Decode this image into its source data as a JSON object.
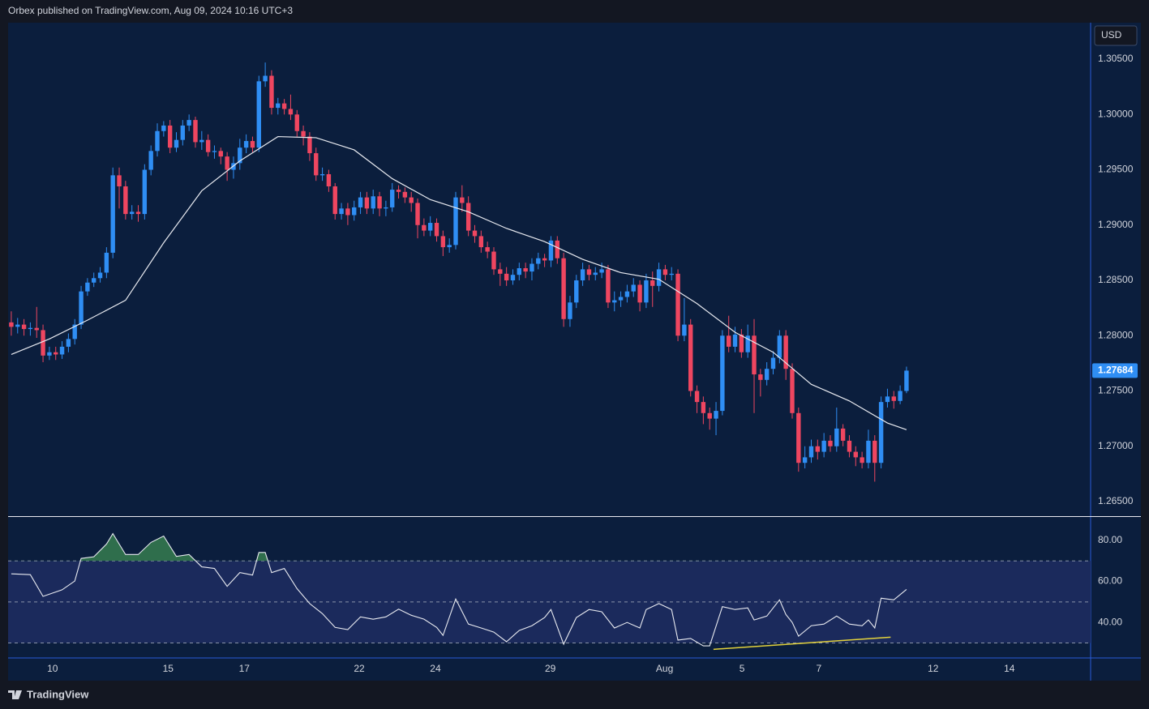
{
  "header": {
    "attribution": "Orbex published on TradingView.com, Aug 09, 2024 10:16 UTC+3"
  },
  "footer": {
    "logo_text": "TradingView"
  },
  "chart_data": [
    {
      "type": "candlestick",
      "currency": "USD",
      "up_color": "#2f8ef4",
      "down_color": "#ef4660",
      "x": [
        0,
        1,
        2,
        3,
        4,
        5,
        6,
        7,
        8,
        9,
        10,
        11,
        12,
        13,
        14,
        15,
        16,
        17,
        18,
        19,
        20,
        21,
        22,
        23,
        24,
        25,
        26,
        27,
        28,
        29,
        30,
        31,
        32,
        33,
        34,
        35,
        36,
        37,
        38,
        39,
        40,
        41,
        42,
        43,
        44,
        45,
        46,
        47,
        48,
        49,
        50,
        51,
        52,
        53,
        54,
        55,
        56,
        57,
        58,
        59,
        60,
        61,
        62,
        63,
        64,
        65,
        66,
        67,
        68,
        69,
        70,
        71,
        72,
        73,
        74,
        75,
        76,
        77,
        78,
        79,
        80,
        81,
        82,
        83,
        84,
        85,
        86,
        87,
        88,
        89,
        90,
        91,
        92,
        93,
        94,
        95,
        96,
        97,
        98,
        99,
        100,
        101,
        102,
        103,
        104,
        105,
        106,
        107,
        108,
        109,
        110,
        111,
        112,
        113,
        114,
        115,
        116,
        117,
        118,
        119,
        120,
        121,
        122,
        123,
        124,
        125,
        126,
        127,
        128,
        129,
        130,
        131,
        132,
        133,
        134,
        135,
        136,
        137,
        138,
        139,
        140,
        141
      ],
      "open": [
        1.2812,
        1.2808,
        1.281,
        1.2806,
        1.2807,
        1.2805,
        1.2782,
        1.2785,
        1.2783,
        1.279,
        1.2797,
        1.281,
        1.284,
        1.2848,
        1.2852,
        1.2857,
        1.2875,
        1.2945,
        1.2935,
        1.291,
        1.2912,
        1.291,
        1.295,
        1.2967,
        1.2985,
        1.299,
        1.297,
        1.2977,
        1.299,
        1.2995,
        1.2975,
        1.2977,
        1.2966,
        1.2967,
        1.2962,
        1.295,
        1.2956,
        1.297,
        1.2976,
        1.297,
        1.303,
        1.3035,
        1.3006,
        1.301,
        1.3005,
        1.3,
        1.2985,
        1.298,
        1.2965,
        1.2945,
        1.2946,
        1.2935,
        1.291,
        1.2915,
        1.2909,
        1.2916,
        1.2925,
        1.2915,
        1.2926,
        1.2915,
        1.2916,
        1.2932,
        1.293,
        1.2925,
        1.292,
        1.29,
        1.2895,
        1.2902,
        1.289,
        1.288,
        1.2882,
        1.2925,
        1.292,
        1.2895,
        1.289,
        1.288,
        1.2876,
        1.286,
        1.2856,
        1.285,
        1.2855,
        1.2861,
        1.2858,
        1.2865,
        1.287,
        1.2868,
        1.2886,
        1.287,
        1.2815,
        1.283,
        1.285,
        1.286,
        1.2855,
        1.2857,
        1.286,
        1.283,
        1.2832,
        1.2835,
        1.284,
        1.2846,
        1.283,
        1.285,
        1.2845,
        1.286,
        1.2855,
        1.2856,
        1.28,
        1.281,
        1.275,
        1.274,
        1.273,
        1.2725,
        1.2732,
        1.28,
        1.279,
        1.2801,
        1.2785,
        1.28,
        1.2765,
        1.276,
        1.277,
        1.278,
        1.28,
        1.277,
        1.273,
        1.2685,
        1.269,
        1.27,
        1.2695,
        1.2705,
        1.27,
        1.2716,
        1.2705,
        1.2695,
        1.269,
        1.2685,
        1.2705,
        1.2685,
        1.274,
        1.2745,
        1.2741,
        1.275
      ],
      "high": [
        1.2822,
        1.2816,
        1.2815,
        1.2812,
        1.2826,
        1.281,
        1.279,
        1.279,
        1.2795,
        1.2802,
        1.2815,
        1.2845,
        1.2852,
        1.2857,
        1.2862,
        1.288,
        1.2952,
        1.2952,
        1.294,
        1.2918,
        1.2918,
        1.2955,
        1.2972,
        1.2992,
        1.2994,
        1.2995,
        1.2984,
        1.2995,
        1.3,
        1.2998,
        1.2985,
        1.2982,
        1.2972,
        1.297,
        1.2966,
        1.2962,
        1.2978,
        1.2982,
        1.298,
        1.3035,
        1.3047,
        1.304,
        1.3015,
        1.3014,
        1.3018,
        1.3004,
        1.299,
        1.2984,
        1.297,
        1.2952,
        1.295,
        1.2938,
        1.292,
        1.292,
        1.2922,
        1.293,
        1.293,
        1.2932,
        1.293,
        1.2922,
        1.2938,
        1.2936,
        1.2934,
        1.293,
        1.2924,
        1.2906,
        1.2908,
        1.2906,
        1.2895,
        1.2888,
        1.293,
        1.2936,
        1.2926,
        1.29,
        1.2895,
        1.2885,
        1.288,
        1.2866,
        1.2862,
        1.286,
        1.2866,
        1.2866,
        1.287,
        1.2875,
        1.2874,
        1.289,
        1.289,
        1.2875,
        1.2836,
        1.2855,
        1.2866,
        1.2864,
        1.2862,
        1.2866,
        1.2864,
        1.284,
        1.284,
        1.2846,
        1.2852,
        1.285,
        1.2856,
        1.2858,
        1.2866,
        1.2864,
        1.2862,
        1.286,
        1.2834,
        1.2815,
        1.2755,
        1.2745,
        1.2735,
        1.274,
        1.2805,
        1.2818,
        1.2808,
        1.2806,
        1.281,
        1.2815,
        1.277,
        1.2776,
        1.2786,
        1.2805,
        1.2805,
        1.2775,
        1.2735,
        1.27,
        1.2706,
        1.2706,
        1.2712,
        1.271,
        1.2735,
        1.272,
        1.271,
        1.27,
        1.2695,
        1.2715,
        1.271,
        1.2745,
        1.2752,
        1.275,
        1.2755,
        1.2772
      ],
      "low": [
        1.28,
        1.2802,
        1.28,
        1.28,
        1.2798,
        1.2776,
        1.2778,
        1.2778,
        1.2779,
        1.2785,
        1.2792,
        1.2806,
        1.2836,
        1.2844,
        1.2848,
        1.2852,
        1.287,
        1.2915,
        1.2905,
        1.2905,
        1.2903,
        1.2905,
        1.2945,
        1.2962,
        1.298,
        1.2965,
        1.2966,
        1.2972,
        1.2985,
        1.297,
        1.2968,
        1.2962,
        1.296,
        1.2955,
        1.294,
        1.2942,
        1.295,
        1.2965,
        1.2966,
        1.2966,
        1.3025,
        1.3,
        1.3,
        1.3,
        1.2995,
        1.298,
        1.2972,
        1.2958,
        1.294,
        1.294,
        1.293,
        1.2905,
        1.2905,
        1.29,
        1.2904,
        1.291,
        1.291,
        1.291,
        1.2908,
        1.2908,
        1.2912,
        1.2924,
        1.292,
        1.2912,
        1.2888,
        1.289,
        1.289,
        1.2885,
        1.2872,
        1.2875,
        1.2878,
        1.2912,
        1.289,
        1.2884,
        1.2875,
        1.287,
        1.2855,
        1.2845,
        1.2845,
        1.2846,
        1.285,
        1.2852,
        1.285,
        1.286,
        1.2862,
        1.2862,
        1.2865,
        1.2808,
        1.2808,
        1.2825,
        1.2845,
        1.285,
        1.285,
        1.2852,
        1.2825,
        1.2822,
        1.2826,
        1.283,
        1.2835,
        1.2822,
        1.2825,
        1.2826,
        1.284,
        1.285,
        1.285,
        1.2795,
        1.2795,
        1.2745,
        1.273,
        1.272,
        1.2715,
        1.271,
        1.2728,
        1.2785,
        1.2785,
        1.278,
        1.278,
        1.273,
        1.2745,
        1.2755,
        1.2765,
        1.2775,
        1.276,
        1.2725,
        1.2677,
        1.268,
        1.2685,
        1.2688,
        1.269,
        1.2695,
        1.2695,
        1.27,
        1.269,
        1.2682,
        1.268,
        1.268,
        1.2668,
        1.268,
        1.2735,
        1.2734,
        1.2738,
        1.2748
      ],
      "close": [
        1.2808,
        1.281,
        1.2806,
        1.2807,
        1.2805,
        1.2782,
        1.2785,
        1.2783,
        1.279,
        1.2797,
        1.281,
        1.284,
        1.2848,
        1.2852,
        1.2857,
        1.2875,
        1.2945,
        1.2935,
        1.291,
        1.2912,
        1.291,
        1.295,
        1.2967,
        1.2985,
        1.299,
        1.297,
        1.2977,
        1.299,
        1.2995,
        1.2975,
        1.2977,
        1.2966,
        1.2967,
        1.2962,
        1.295,
        1.2956,
        1.297,
        1.2976,
        1.297,
        1.303,
        1.3035,
        1.3006,
        1.301,
        1.3005,
        1.3,
        1.2985,
        1.298,
        1.2965,
        1.2945,
        1.2946,
        1.2935,
        1.291,
        1.2915,
        1.2909,
        1.2916,
        1.2925,
        1.2915,
        1.2926,
        1.2915,
        1.2916,
        1.2932,
        1.293,
        1.2925,
        1.292,
        1.29,
        1.2895,
        1.2902,
        1.289,
        1.288,
        1.2882,
        1.2925,
        1.292,
        1.2895,
        1.289,
        1.288,
        1.2876,
        1.286,
        1.2856,
        1.285,
        1.2855,
        1.2861,
        1.2858,
        1.2865,
        1.287,
        1.2868,
        1.2886,
        1.287,
        1.2815,
        1.283,
        1.285,
        1.286,
        1.2855,
        1.2857,
        1.286,
        1.283,
        1.2832,
        1.2835,
        1.284,
        1.2846,
        1.283,
        1.285,
        1.2845,
        1.286,
        1.2855,
        1.2856,
        1.28,
        1.281,
        1.275,
        1.274,
        1.273,
        1.2725,
        1.2732,
        1.28,
        1.279,
        1.2801,
        1.2785,
        1.28,
        1.2765,
        1.276,
        1.277,
        1.278,
        1.28,
        1.277,
        1.273,
        1.2685,
        1.269,
        1.27,
        1.2695,
        1.2705,
        1.27,
        1.2716,
        1.2705,
        1.2695,
        1.269,
        1.2685,
        1.2705,
        1.2685,
        1.274,
        1.2745,
        1.2741,
        1.275,
        1.27684
      ],
      "overlay": {
        "type": "line",
        "color": "#e8eaf0",
        "x": [
          0,
          6,
          12,
          18,
          24,
          30,
          36,
          42,
          48,
          54,
          60,
          66,
          72,
          78,
          84,
          90,
          96,
          102,
          108,
          114,
          120,
          126,
          132,
          138,
          141
        ],
        "values": [
          1.2783,
          1.2797,
          1.2814,
          1.2832,
          1.2884,
          1.2931,
          1.2958,
          1.298,
          1.2979,
          1.2968,
          1.2942,
          1.2923,
          1.2912,
          1.2897,
          1.2885,
          1.2869,
          1.2857,
          1.2851,
          1.2829,
          1.2803,
          1.2785,
          1.2756,
          1.2741,
          1.2721,
          1.2715
        ]
      },
      "ylim": [
        1.26368,
        1.3083
      ],
      "yticks": [
        {
          "value": 1.265,
          "label": "1.26500"
        },
        {
          "value": 1.27,
          "label": "1.27000"
        },
        {
          "value": 1.275,
          "label": "1.27500"
        },
        {
          "value": 1.28,
          "label": "1.28000"
        },
        {
          "value": 1.285,
          "label": "1.28500"
        },
        {
          "value": 1.29,
          "label": "1.29000"
        },
        {
          "value": 1.295,
          "label": "1.29500"
        },
        {
          "value": 1.3,
          "label": "1.30000"
        },
        {
          "value": 1.305,
          "label": "1.30500"
        }
      ],
      "xlim": [
        -0.5,
        170
      ],
      "xticks": [
        {
          "value": 6.5,
          "label": "10"
        },
        {
          "value": 24.7,
          "label": "15"
        },
        {
          "value": 36.7,
          "label": "17"
        },
        {
          "value": 54.8,
          "label": "22"
        },
        {
          "value": 66.8,
          "label": "24"
        },
        {
          "value": 84.9,
          "label": "29"
        },
        {
          "value": 102.9,
          "label": "Aug"
        },
        {
          "value": 115.1,
          "label": "5"
        },
        {
          "value": 127.2,
          "label": "7"
        },
        {
          "value": 145.2,
          "label": "12"
        },
        {
          "value": 157.2,
          "label": "14"
        }
      ]
    },
    {
      "type": "line",
      "color": "#e8eaf0",
      "x": [
        0,
        3,
        5,
        8,
        10,
        11,
        13,
        15,
        16,
        18,
        20,
        22,
        24,
        26,
        28,
        30,
        32,
        34,
        36,
        38,
        39,
        40,
        41,
        43,
        45,
        47,
        49,
        51,
        53,
        55,
        57,
        59,
        61,
        63,
        65,
        67,
        68,
        70,
        72,
        74,
        76,
        78,
        80,
        82,
        84,
        85,
        87,
        89,
        91,
        93,
        95,
        97,
        99,
        100,
        102,
        104,
        105,
        107,
        109,
        110,
        112,
        114,
        116,
        117,
        119,
        121,
        122,
        123,
        124,
        126,
        128,
        130,
        132,
        134,
        135,
        136,
        137,
        139,
        141
      ],
      "values": [
        63.7,
        63.3,
        52.7,
        55.9,
        60.2,
        71.2,
        72,
        78.2,
        83.3,
        73.1,
        73.1,
        79,
        82.1,
        72.2,
        73.1,
        67.1,
        66.3,
        57.6,
        64.3,
        63.1,
        74.1,
        74.1,
        64.3,
        66.3,
        56.5,
        49.2,
        44.3,
        37.6,
        36.5,
        42.7,
        41.6,
        42.7,
        46.5,
        43.5,
        41.6,
        37.6,
        33.7,
        51.4,
        39.2,
        37.3,
        35.3,
        30.6,
        36.1,
        38.4,
        42.4,
        46.3,
        29.4,
        42.4,
        46.3,
        45.2,
        37.3,
        40,
        37.3,
        46.3,
        49.2,
        46.3,
        31.4,
        32.2,
        28.6,
        28.6,
        47.7,
        46.3,
        47.1,
        41.2,
        43.1,
        51,
        43.9,
        40,
        33.3,
        38.4,
        39.2,
        43.1,
        39.2,
        38.4,
        41.2,
        37.3,
        51.8,
        51,
        56.1
      ],
      "levels": [
        30,
        50,
        70
      ],
      "band_color": "#1b2a5c",
      "overbought_color": "#2f6e4c",
      "trendline": {
        "x": [
          110.6,
          138.5
        ],
        "values": [
          26.9,
          32.8
        ],
        "color": "#e3d23c"
      },
      "ylim": [
        22.7,
        91.4
      ],
      "yticks": [
        {
          "value": 40,
          "label": "40.00"
        },
        {
          "value": 60,
          "label": "60.00"
        },
        {
          "value": 80,
          "label": "80.00"
        }
      ]
    }
  ]
}
